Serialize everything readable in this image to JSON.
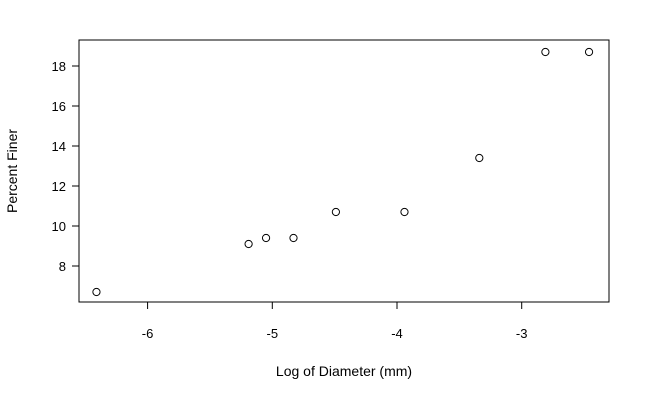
{
  "chart_data": {
    "type": "scatter",
    "title": "",
    "xlabel": "Log of Diameter (mm)",
    "ylabel": "Percent Finer",
    "xlim": [
      -6.55,
      -2.3
    ],
    "ylim": [
      6.2,
      19.3
    ],
    "xticks": [
      -6,
      -5,
      -4,
      -3
    ],
    "yticks": [
      8,
      10,
      12,
      14,
      16,
      18
    ],
    "grid": false,
    "marker": "open-circle",
    "points": [
      {
        "x": -6.41,
        "y": 6.7
      },
      {
        "x": -5.19,
        "y": 9.1
      },
      {
        "x": -5.05,
        "y": 9.4
      },
      {
        "x": -4.83,
        "y": 9.4
      },
      {
        "x": -4.49,
        "y": 10.7
      },
      {
        "x": -3.94,
        "y": 10.7
      },
      {
        "x": -3.34,
        "y": 13.4
      },
      {
        "x": -2.81,
        "y": 18.7
      },
      {
        "x": -2.46,
        "y": 18.7
      }
    ]
  }
}
